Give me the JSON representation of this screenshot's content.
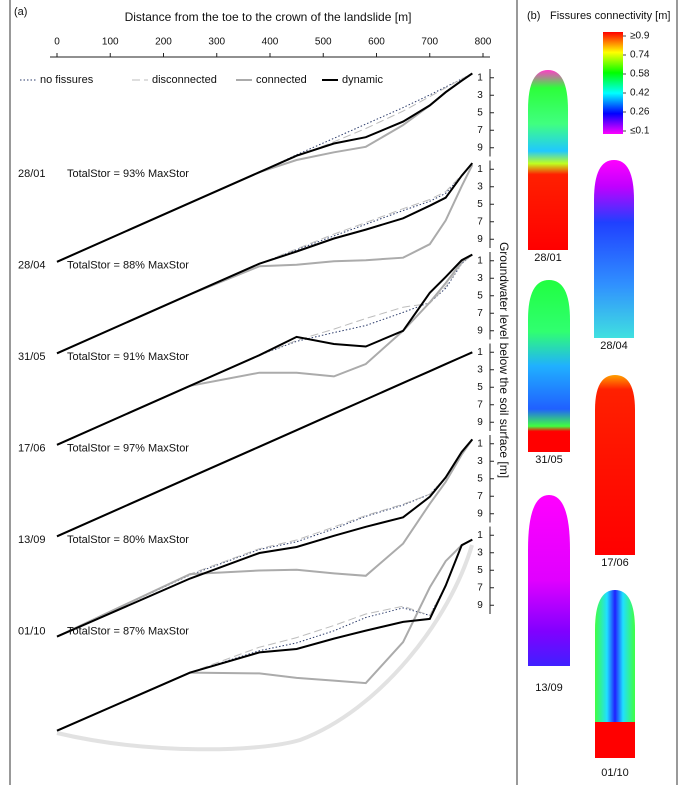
{
  "chart_data": [
    {
      "type": "profile-stack",
      "panel_label": "(a)",
      "title": "Distance from the toe to the crown of the landslide [m]",
      "y_label": "Groundwater level below the soil surface [m]",
      "xlim": [
        0,
        800
      ],
      "xticks": [
        0,
        100,
        200,
        300,
        400,
        500,
        600,
        700,
        800
      ],
      "ylim": [
        0,
        10
      ],
      "yticks": [
        1,
        3,
        5,
        7,
        9
      ],
      "x": [
        0,
        250,
        380,
        450,
        520,
        580,
        650,
        700,
        730,
        760,
        780
      ],
      "series": [
        {
          "name": "no fissures",
          "color": "#2a3a6a",
          "dash": "1.5,2",
          "width": 1
        },
        {
          "name": "disconnected",
          "color": "#bdbdbd",
          "dash": "8,4",
          "width": 1
        },
        {
          "name": "connected",
          "color": "#ababab",
          "dash": "none",
          "width": 2
        },
        {
          "name": "dynamic",
          "color": "#000000",
          "dash": "none",
          "width": 2
        }
      ],
      "panels": [
        {
          "date": "28/01",
          "annotation": "TotalStor = 93% MaxStor",
          "values": [
            [
              1,
              1,
              1,
              0.9,
              0.9,
              0.9,
              0.9,
              0.8,
              0.7,
              0.6,
              0.5
            ],
            [
              1,
              1,
              1,
              1.1,
              1.3,
              1.4,
              1.3,
              1.0,
              0.8,
              0.6,
              0.5
            ],
            [
              1,
              1,
              1,
              1.5,
              2.5,
              3.5,
              2.9,
              2.0,
              1.3,
              0.8,
              0.5
            ],
            [
              1,
              1,
              1,
              1.0,
              1.5,
              2.4,
              2.5,
              2.0,
              1.3,
              0.8,
              0.5
            ]
          ]
        },
        {
          "date": "28/04",
          "annotation": "TotalStor = 88% MaxStor",
          "values": [
            [
              1,
              1,
              1,
              1.3,
              1.6,
              1.9,
              2.2,
              2.5,
              2.4,
              1.2,
              0.3
            ],
            [
              1,
              1,
              1,
              1.2,
              1.4,
              1.7,
              2.0,
              2.3,
              2.2,
              1.1,
              0.3
            ],
            [
              1,
              1,
              1.3,
              3.0,
              4.5,
              6.0,
              7.6,
              7.4,
              5.5,
              2.4,
              0.5
            ],
            [
              1,
              1,
              1.0,
              1.5,
              1.9,
              2.5,
              3.1,
              3.0,
              2.9,
              1.2,
              0.3
            ]
          ]
        },
        {
          "date": "31/05",
          "annotation": "TotalStor = 91% MaxStor",
          "values": [
            [
              1,
              1,
              1,
              1.3,
              2.2,
              3.0,
              3.4,
              3.6,
              2.8,
              0.8,
              0.3
            ],
            [
              1,
              1,
              1,
              1.2,
              1.8,
              2.2,
              2.8,
              3.7,
              2.6,
              0.8,
              0.3
            ],
            [
              1,
              1,
              3.0,
              4.9,
              7.2,
              7.4,
              5.5,
              3.6,
              2.2,
              0.6,
              0.3
            ],
            [
              1,
              1,
              1,
              0.8,
              3.5,
              5.4,
              5.5,
              2.5,
              1.5,
              0.4,
              0.3
            ]
          ]
        },
        {
          "date": "17/06",
          "annotation": "TotalStor = 97% MaxStor",
          "values": [
            [
              1,
              1,
              1,
              1,
              1,
              1,
              1,
              1,
              1,
              1,
              1
            ],
            [
              1,
              1,
              1,
              1,
              1,
              1,
              1,
              1,
              1,
              1,
              1
            ],
            [
              1,
              1,
              1,
              1,
              1,
              1,
              1,
              1,
              1,
              1,
              1
            ],
            [
              1,
              1,
              1,
              1,
              1,
              1,
              1,
              1,
              1,
              1,
              1
            ]
          ]
        },
        {
          "date": "13/09",
          "annotation": "TotalStor = 80% MaxStor",
          "values": [
            [
              2,
              1.7,
              2.3,
              3.3,
              3.7,
              3.9,
              4.5,
              4.6,
              3.5,
              1.4,
              0.5
            ],
            [
              2,
              1.6,
              2.2,
              3.1,
              3.5,
              3.8,
              4.4,
              4.6,
              3.5,
              1.4,
              0.5
            ],
            [
              2,
              1.6,
              4.7,
              6.5,
              8.8,
              10.7,
              8.9,
              5.7,
              4.0,
              1.7,
              0.5
            ],
            [
              2,
              2.1,
              2.7,
              3.9,
              4.5,
              5.1,
              5.9,
              4.9,
              3.5,
              1.4,
              0.5
            ]
          ]
        },
        {
          "date": "01/10",
          "annotation": "TotalStor = 87% MaxStor",
          "values": [
            [
              2.3,
              2.4,
              3.4,
              4.4,
              4.9,
              5.0,
              5.8,
              8.0,
              5.4,
              1.6,
              1.5
            ],
            [
              2.3,
              2.4,
              3.0,
              3.8,
              4.3,
              4.6,
              5.6,
              8.0,
              5.4,
              1.6,
              1.5
            ],
            [
              2.3,
              2.4,
              6.0,
              8.4,
              10.6,
              12.5,
              9.7,
              4.8,
              2.6,
              1.6,
              1.5
            ],
            [
              2.3,
              2.4,
              3.6,
              5.1,
              5.8,
              6.5,
              7.4,
              8.4,
              5.4,
              1.6,
              1.5
            ]
          ]
        }
      ]
    },
    {
      "type": "colorbar",
      "panel_label": "(b)",
      "title": "Fissures connectivity [m]",
      "clim": [
        0.1,
        0.9
      ],
      "ticks": [
        {
          "value": 0.9,
          "label": "≥0.9"
        },
        0.74,
        0.58,
        0.42,
        0.26,
        {
          "value": 0.1,
          "label": "≤0.1"
        }
      ],
      "maps": [
        "28/01",
        "28/04",
        "31/05",
        "17/06",
        "13/09",
        "01/10"
      ]
    }
  ]
}
